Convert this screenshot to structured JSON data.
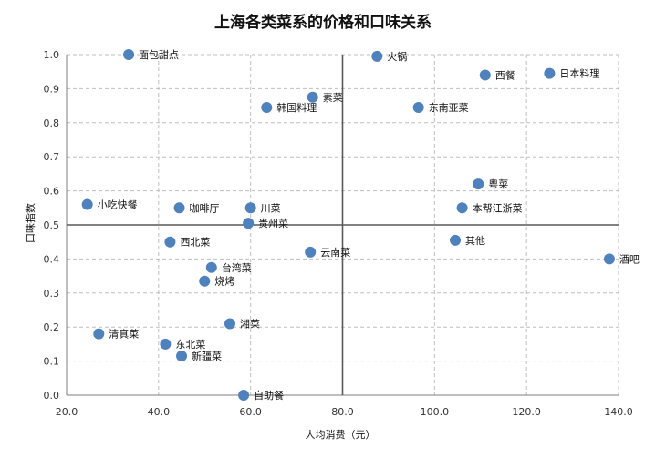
{
  "chart_data": {
    "type": "scatter",
    "title": "上海各类菜系的价格和口味关系",
    "xlabel": "人均消费（元）",
    "ylabel": "口味指数",
    "xlim": [
      20,
      140
    ],
    "ylim": [
      0,
      1
    ],
    "xticks": [
      "20.0",
      "40.0",
      "60.0",
      "80.0",
      "100.0",
      "120.0",
      "140.0"
    ],
    "yticks": [
      "0.0",
      "0.1",
      "0.2",
      "0.3",
      "0.4",
      "0.5",
      "0.6",
      "0.7",
      "0.8",
      "0.9",
      "1.0"
    ],
    "grid": "dashed",
    "reference_lines": {
      "x": 80,
      "y": 0.5
    },
    "marker_color": "#4f81bd",
    "points": [
      {
        "label": "面包甜点",
        "x": 33.5,
        "y": 1.0
      },
      {
        "label": "火锅",
        "x": 87.5,
        "y": 0.995
      },
      {
        "label": "西餐",
        "x": 111.0,
        "y": 0.94
      },
      {
        "label": "日本料理",
        "x": 125.0,
        "y": 0.945
      },
      {
        "label": "素菜",
        "x": 73.5,
        "y": 0.875
      },
      {
        "label": "韩国料理",
        "x": 63.5,
        "y": 0.845
      },
      {
        "label": "东南亚菜",
        "x": 96.5,
        "y": 0.845
      },
      {
        "label": "粤菜",
        "x": 109.5,
        "y": 0.62
      },
      {
        "label": "小吃快餐",
        "x": 24.5,
        "y": 0.56
      },
      {
        "label": "咖啡厅",
        "x": 44.5,
        "y": 0.55
      },
      {
        "label": "川菜",
        "x": 60.0,
        "y": 0.55
      },
      {
        "label": "本帮江浙菜",
        "x": 106.0,
        "y": 0.55
      },
      {
        "label": "贵州菜",
        "x": 59.5,
        "y": 0.505
      },
      {
        "label": "西北菜",
        "x": 42.5,
        "y": 0.45
      },
      {
        "label": "其他",
        "x": 104.5,
        "y": 0.455
      },
      {
        "label": "云南菜",
        "x": 73.0,
        "y": 0.42
      },
      {
        "label": "酒吧",
        "x": 138.0,
        "y": 0.4
      },
      {
        "label": "台湾菜",
        "x": 51.5,
        "y": 0.375
      },
      {
        "label": "烧烤",
        "x": 50.0,
        "y": 0.335
      },
      {
        "label": "湘菜",
        "x": 55.5,
        "y": 0.21
      },
      {
        "label": "清真菜",
        "x": 27.0,
        "y": 0.18
      },
      {
        "label": "东北菜",
        "x": 41.5,
        "y": 0.15
      },
      {
        "label": "新疆菜",
        "x": 45.0,
        "y": 0.115
      },
      {
        "label": "自助餐",
        "x": 58.5,
        "y": 0.0
      }
    ]
  }
}
